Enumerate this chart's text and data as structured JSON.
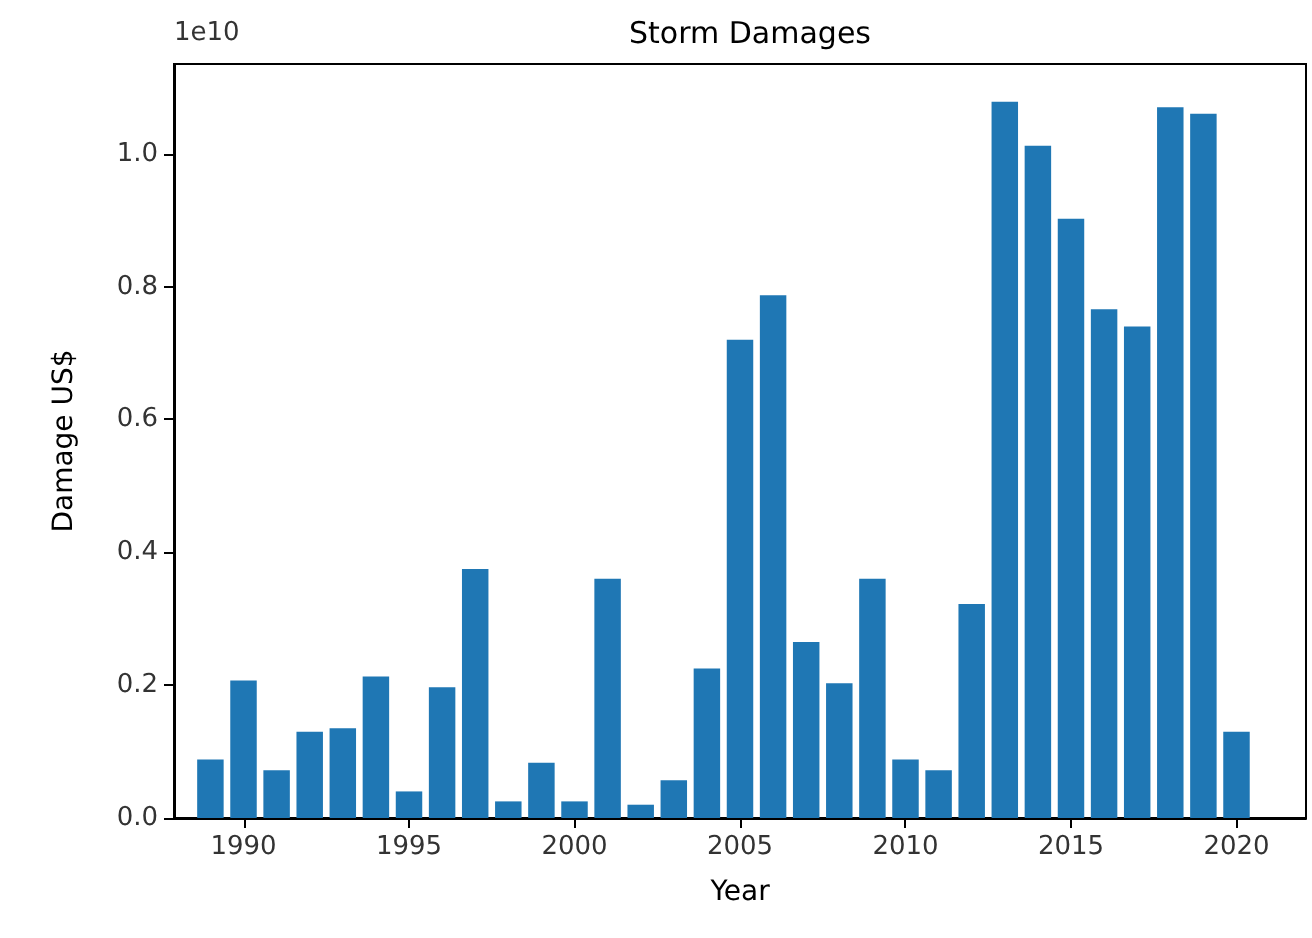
{
  "chart_data": {
    "type": "bar",
    "title": "Storm Damages",
    "xlabel": "Year",
    "ylabel": "Damage US$",
    "annotations": [
      "1e10"
    ],
    "x": [
      1989,
      1990,
      1991,
      1992,
      1993,
      1994,
      1995,
      1996,
      1997,
      1998,
      1999,
      2000,
      2001,
      2002,
      2003,
      2004,
      2005,
      2006,
      2007,
      2008,
      2009,
      2010,
      2011,
      2012,
      2013,
      2014,
      2015,
      2016,
      2017,
      2018,
      2019,
      2020
    ],
    "values": [
      0.088,
      0.207,
      0.072,
      0.13,
      0.135,
      0.213,
      0.04,
      0.197,
      0.375,
      0.025,
      0.083,
      0.025,
      0.36,
      0.02,
      0.057,
      0.225,
      0.72,
      0.787,
      0.265,
      0.203,
      0.36,
      0.088,
      0.072,
      0.322,
      1.078,
      1.012,
      0.902,
      0.766,
      0.74,
      1.07,
      1.06,
      0.13
    ],
    "color": "#1f77b4",
    "xlim": [
      1987.9,
      2022.1
    ],
    "xticks": [
      1990,
      1995,
      2000,
      2005,
      2010,
      2015,
      2020
    ],
    "ylim": [
      0,
      1.135
    ],
    "yticks": [
      {
        "value": 0,
        "label": "0.0"
      },
      {
        "value": 0.2,
        "label": "0.2"
      },
      {
        "value": 0.4,
        "label": "0.4"
      },
      {
        "value": 0.6,
        "label": "0.6"
      },
      {
        "value": 0.8,
        "label": "0.8"
      },
      {
        "value": 1.0,
        "label": "1.0"
      }
    ],
    "grid": false
  }
}
